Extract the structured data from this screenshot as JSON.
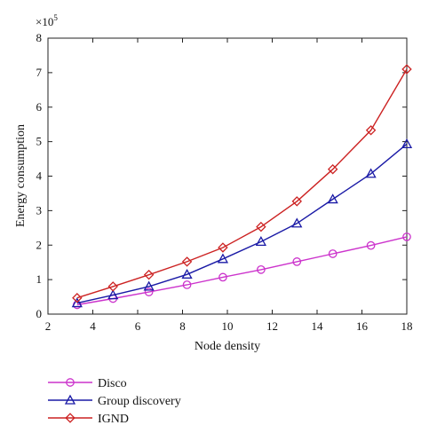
{
  "chart_data": {
    "type": "line",
    "xlabel": "Node density",
    "ylabel": "Energy consumption",
    "y_multiplier": "×10",
    "y_multiplier_exponent": "5",
    "xlim": [
      2,
      18
    ],
    "ylim": [
      0,
      8
    ],
    "x_ticks": [
      2,
      4,
      6,
      8,
      10,
      12,
      14,
      16,
      18
    ],
    "y_ticks": [
      0,
      1,
      2,
      3,
      4,
      5,
      6,
      7,
      8
    ],
    "grid": false,
    "legend_position": "below",
    "series": [
      {
        "name": "Disco",
        "color": "#cc33cc",
        "marker": "circle",
        "x": [
          3.3,
          4.9,
          6.5,
          8.2,
          9.8,
          11.5,
          13.1,
          14.7,
          16.4,
          18
        ],
        "y": [
          0.27,
          0.45,
          0.64,
          0.85,
          1.07,
          1.29,
          1.52,
          1.75,
          1.99,
          2.24
        ]
      },
      {
        "name": "Group discovery",
        "color": "#1a1aa6",
        "marker": "triangle",
        "x": [
          3.3,
          4.9,
          6.5,
          8.2,
          9.8,
          11.5,
          13.1,
          14.7,
          16.4,
          18
        ],
        "y": [
          0.32,
          0.55,
          0.8,
          1.15,
          1.6,
          2.1,
          2.63,
          3.33,
          4.07,
          4.93
        ]
      },
      {
        "name": "IGND",
        "color": "#cc2222",
        "marker": "diamond",
        "x": [
          3.3,
          4.9,
          6.5,
          8.2,
          9.8,
          11.5,
          13.1,
          14.7,
          16.4,
          18
        ],
        "y": [
          0.47,
          0.8,
          1.14,
          1.52,
          1.93,
          2.53,
          3.27,
          4.2,
          5.33,
          7.1
        ]
      }
    ]
  }
}
